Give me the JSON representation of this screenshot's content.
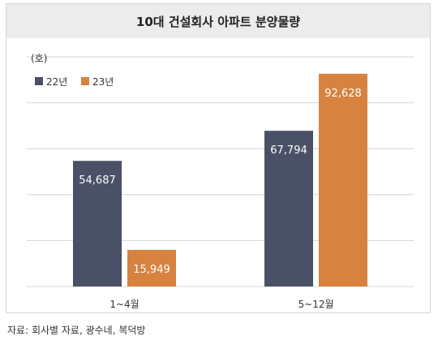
{
  "chart_data": {
    "type": "bar",
    "title": "10대 건설회사 아파트 분양물량",
    "ylabel": "(호)",
    "xlabel": "",
    "categories": [
      "1~4월",
      "5~12월"
    ],
    "series": [
      {
        "name": "22년",
        "values": [
          54687,
          67794
        ],
        "color": "#4a5066",
        "labels": [
          "54,687",
          "67,794"
        ]
      },
      {
        "name": "23년",
        "values": [
          15949,
          92628
        ],
        "color": "#d7823f",
        "labels": [
          "15,949",
          "92,628"
        ]
      }
    ],
    "ylim": [
      0,
      100000
    ],
    "grid": true,
    "legend": "top-left"
  },
  "source": "자료: 회사별 자료, 광수네, 복덕방"
}
